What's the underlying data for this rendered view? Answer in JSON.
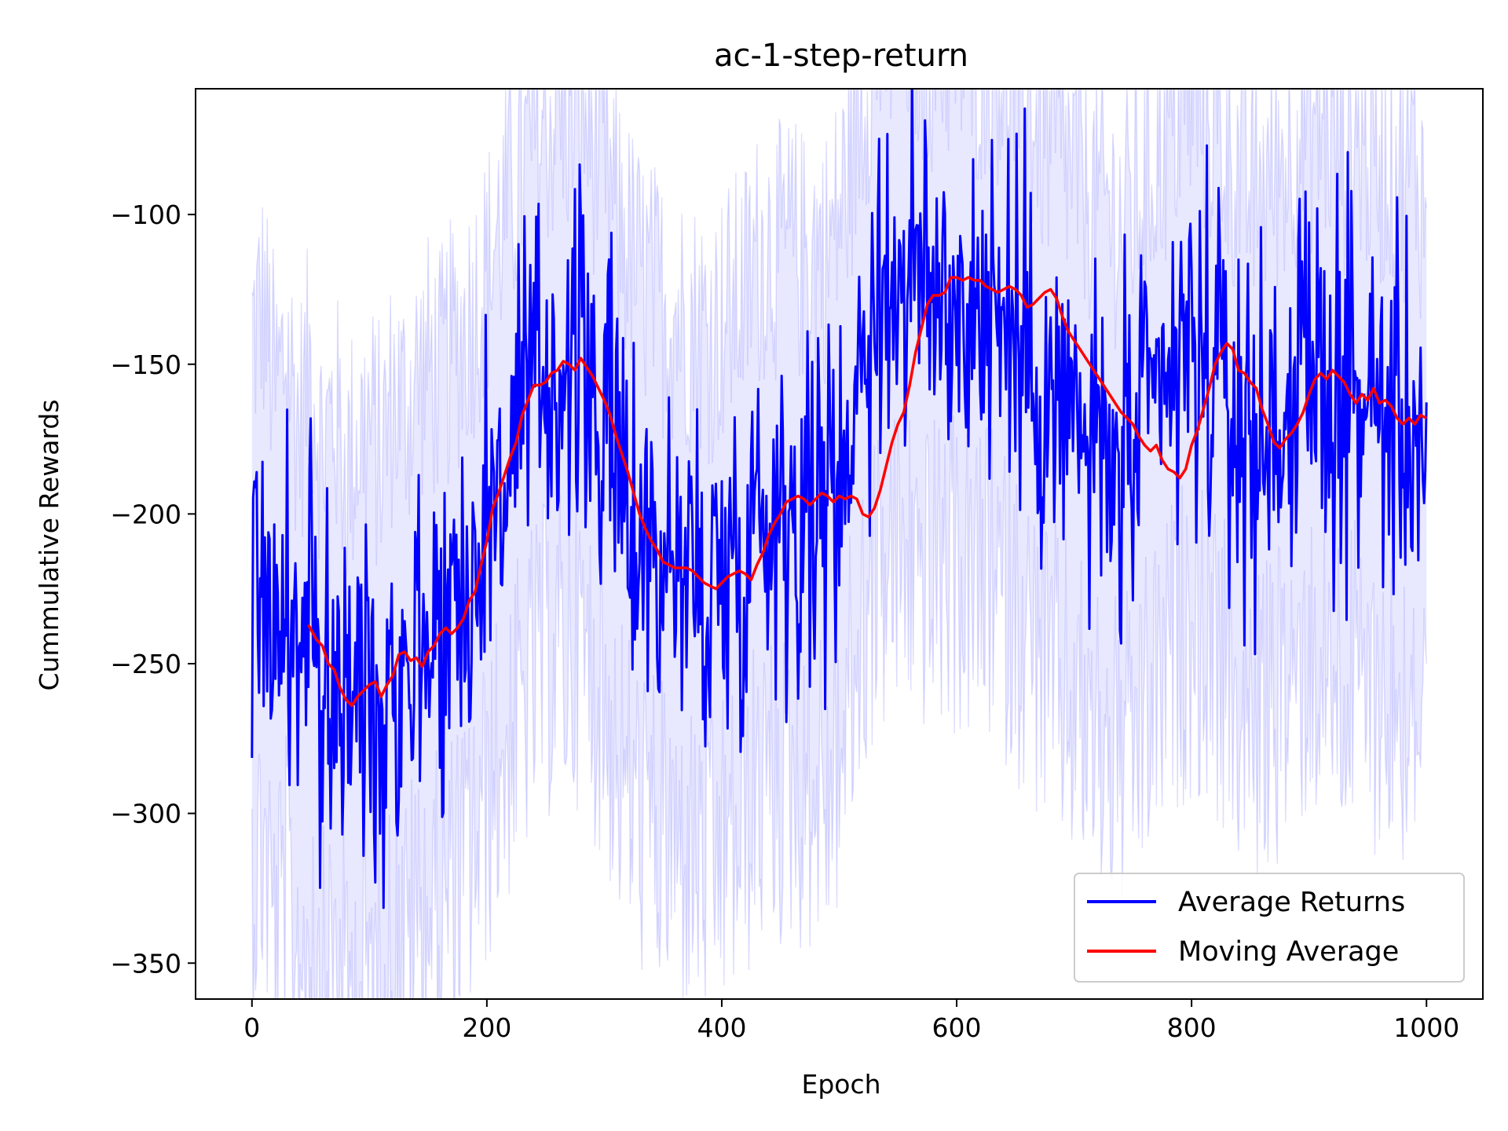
{
  "chart_data": {
    "type": "line",
    "title": "ac-1-step-return",
    "xlabel": "Epoch",
    "ylabel": "Cummulative Rewards",
    "xlim": [
      -48,
      1048
    ],
    "ylim": [
      -362,
      -58
    ],
    "xticks": [
      0,
      200,
      400,
      600,
      800,
      1000
    ],
    "xtick_labels": [
      "0",
      "200",
      "400",
      "600",
      "800",
      "1000"
    ],
    "yticks": [
      -100,
      -150,
      -200,
      -250,
      -300,
      -350
    ],
    "ytick_labels": [
      "−100",
      "−150",
      "−200",
      "−250",
      "−300",
      "−350"
    ],
    "grid": false,
    "legend_position": "lower right",
    "colors": {
      "average_returns": "#0000ff",
      "moving_average": "#ff0000",
      "band": "#0000ff"
    },
    "series": [
      {
        "name": "Average Returns",
        "key": "average_returns",
        "x": [
          0,
          10,
          20,
          30,
          40,
          50,
          60,
          70,
          80,
          90,
          100,
          110,
          120,
          130,
          140,
          150,
          160,
          170,
          180,
          190,
          200,
          210,
          220,
          230,
          240,
          250,
          260,
          270,
          280,
          290,
          300,
          310,
          320,
          330,
          340,
          350,
          360,
          370,
          380,
          390,
          400,
          410,
          420,
          430,
          440,
          450,
          460,
          470,
          480,
          490,
          500,
          510,
          520,
          530,
          540,
          550,
          560,
          570,
          580,
          590,
          600,
          610,
          620,
          630,
          640,
          650,
          660,
          670,
          680,
          690,
          700,
          710,
          720,
          730,
          740,
          750,
          760,
          770,
          780,
          790,
          800,
          810,
          820,
          830,
          840,
          850,
          860,
          870,
          880,
          890,
          900,
          910,
          920,
          930,
          940,
          950,
          960,
          970,
          980,
          990,
          1000
        ],
        "values": [
          -225,
          -215,
          -245,
          -230,
          -255,
          -235,
          -265,
          -250,
          -270,
          -260,
          -255,
          -265,
          -245,
          -250,
          -240,
          -235,
          -240,
          -230,
          -225,
          -215,
          -205,
          -190,
          -180,
          -170,
          -160,
          -155,
          -150,
          -152,
          -148,
          -160,
          -170,
          -185,
          -195,
          -205,
          -210,
          -215,
          -218,
          -220,
          -222,
          -225,
          -220,
          -215,
          -210,
          -200,
          -195,
          -198,
          -195,
          -200,
          -195,
          -198,
          -185,
          -165,
          -145,
          -128,
          -125,
          -122,
          -120,
          -124,
          -128,
          -125,
          -127,
          -130,
          -132,
          -128,
          -135,
          -140,
          -148,
          -155,
          -162,
          -165,
          -170,
          -175,
          -180,
          -183,
          -188,
          -182,
          -175,
          -165,
          -158,
          -150,
          -145,
          -150,
          -155,
          -162,
          -170,
          -178,
          -176,
          -170,
          -165,
          -158,
          -155,
          -153,
          -158,
          -162,
          -160,
          -163,
          -165,
          -168,
          -170,
          -167,
          -185
        ]
      },
      {
        "name": "Moving Average",
        "key": "moving_average",
        "x": [
          48,
          55,
          60,
          65,
          70,
          75,
          80,
          85,
          90,
          95,
          100,
          105,
          110,
          115,
          120,
          125,
          130,
          135,
          140,
          145,
          150,
          155,
          160,
          165,
          170,
          175,
          180,
          185,
          190,
          195,
          200,
          205,
          210,
          215,
          220,
          225,
          230,
          235,
          240,
          245,
          250,
          255,
          260,
          265,
          270,
          275,
          280,
          285,
          290,
          295,
          300,
          305,
          310,
          315,
          320,
          325,
          330,
          335,
          340,
          345,
          350,
          355,
          360,
          365,
          370,
          375,
          380,
          385,
          390,
          395,
          400,
          405,
          410,
          415,
          420,
          425,
          430,
          435,
          440,
          445,
          450,
          455,
          460,
          465,
          470,
          475,
          480,
          485,
          490,
          495,
          500,
          505,
          510,
          515,
          520,
          525,
          530,
          535,
          540,
          545,
          550,
          555,
          560,
          565,
          570,
          575,
          580,
          585,
          590,
          595,
          600,
          605,
          610,
          615,
          620,
          625,
          630,
          635,
          640,
          645,
          650,
          655,
          660,
          665,
          670,
          675,
          680,
          685,
          690,
          695,
          700,
          705,
          710,
          715,
          720,
          725,
          730,
          735,
          740,
          745,
          750,
          755,
          760,
          765,
          770,
          775,
          780,
          785,
          790,
          795,
          800,
          805,
          810,
          815,
          820,
          825,
          830,
          835,
          840,
          845,
          850,
          855,
          860,
          865,
          870,
          875,
          880,
          885,
          890,
          895,
          900,
          905,
          910,
          915,
          920,
          925,
          930,
          935,
          940,
          945,
          950,
          955,
          960,
          965,
          970,
          975,
          980,
          985,
          990,
          995,
          1000
        ],
        "values": [
          -237,
          -242,
          -244,
          -250,
          -252,
          -258,
          -262,
          -264,
          -261,
          -259,
          -257,
          -256,
          -261,
          -257,
          -254,
          -247,
          -246,
          -249,
          -248,
          -251,
          -246,
          -244,
          -240,
          -238,
          -240,
          -238,
          -235,
          -229,
          -226,
          -217,
          -209,
          -198,
          -193,
          -187,
          -181,
          -176,
          -167,
          -162,
          -157,
          -157,
          -156,
          -153,
          -152,
          -149,
          -150,
          -152,
          -148,
          -151,
          -154,
          -158,
          -162,
          -167,
          -174,
          -180,
          -186,
          -193,
          -200,
          -205,
          -209,
          -212,
          -216,
          -217,
          -218,
          -218,
          -218,
          -219,
          -221,
          -223,
          -224,
          -225,
          -223,
          -221,
          -220,
          -219,
          -220,
          -222,
          -217,
          -213,
          -207,
          -203,
          -200,
          -196,
          -195,
          -194,
          -195,
          -197,
          -195,
          -193,
          -194,
          -196,
          -194,
          -195,
          -194,
          -195,
          -200,
          -201,
          -198,
          -192,
          -184,
          -176,
          -170,
          -166,
          -157,
          -146,
          -138,
          -130,
          -127,
          -127,
          -126,
          -121,
          -121,
          -122,
          -121,
          -122,
          -122,
          -124,
          -125,
          -126,
          -125,
          -124,
          -125,
          -127,
          -131,
          -130,
          -128,
          -126,
          -125,
          -128,
          -134,
          -139,
          -142,
          -145,
          -148,
          -151,
          -154,
          -157,
          -160,
          -163,
          -166,
          -168,
          -170,
          -174,
          -177,
          -179,
          -177,
          -182,
          -185,
          -186,
          -188,
          -185,
          -177,
          -172,
          -165,
          -158,
          -150,
          -146,
          -143,
          -145,
          -152,
          -153,
          -156,
          -158,
          -165,
          -170,
          -176,
          -178,
          -175,
          -173,
          -170,
          -166,
          -160,
          -155,
          -153,
          -155,
          -152,
          -154,
          -156,
          -160,
          -163,
          -160,
          -162,
          -158,
          -163,
          -162,
          -164,
          -168,
          -170,
          -168,
          -170,
          -167,
          -168
        ],
        "display_every": 1
      }
    ],
    "band": {
      "name": "",
      "note_hidden": false
    }
  }
}
